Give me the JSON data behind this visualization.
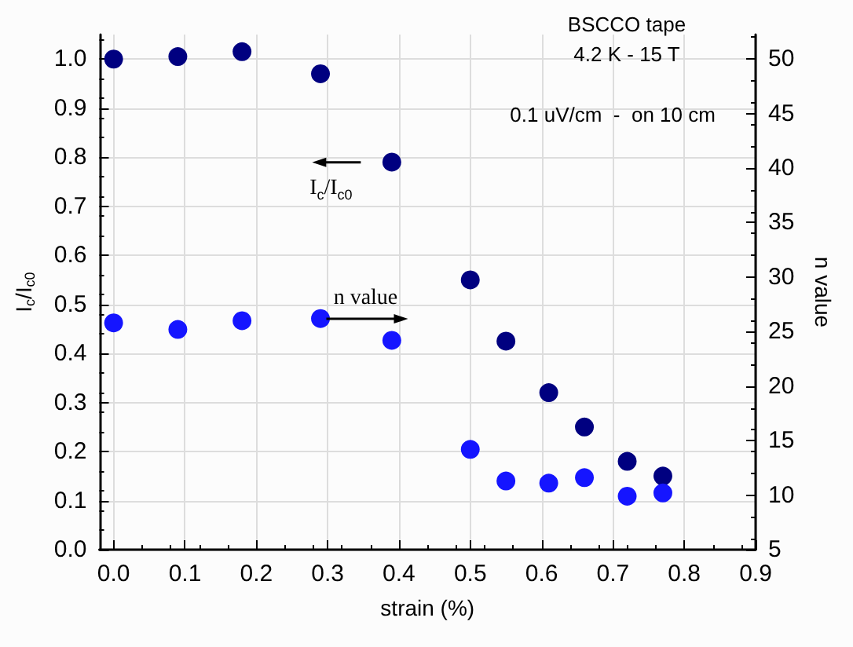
{
  "chart_data": {
    "type": "scatter",
    "title": "BSCCO tape",
    "subtitle": "4.2 K - 15 T",
    "xlabel": "strain (%)",
    "ylabel": "I$_{c}$/I$_{c0}$",
    "y2label": "n value",
    "annotations": [
      "0.1 uV/cm  -  on 10 cm",
      "I$_{c}$/I$_{c0}$",
      "n value"
    ],
    "x": [
      0,
      0.09,
      0.18,
      0.29,
      0.39,
      0.5,
      0.55,
      0.61,
      0.66,
      0.72,
      0.77
    ],
    "series": [
      {
        "color": "#000080",
        "values": [
          1.0,
          1.005,
          1.015,
          0.97,
          0.79,
          0.55,
          0.425,
          0.32,
          0.25,
          0.18,
          0.15
        ]
      },
      {
        "color": "#1515ff",
        "axis": "y2",
        "values": [
          25.8,
          25.2,
          26.0,
          26.2,
          24.2,
          14.2,
          11.3,
          11.1,
          11.6,
          9.9,
          10.2
        ]
      }
    ],
    "xlim": [
      -0.02,
      0.9
    ],
    "xticks": [
      {
        "value": 0,
        "label": "0.0"
      },
      0.1,
      0.2,
      0.3,
      0.4,
      0.5,
      0.6,
      0.7,
      0.8,
      0.9
    ],
    "ylim": [
      0,
      1.05
    ],
    "yticks": [
      {
        "value": 0,
        "label": "0.0"
      },
      0.1,
      0.2,
      0.3,
      0.4,
      0.5,
      0.6,
      0.7,
      0.8,
      0.9,
      {
        "value": 1,
        "label": "1.0"
      }
    ],
    "y2lim": [
      5,
      52.25
    ],
    "y2ticks": [
      5,
      10,
      15,
      20,
      25,
      30,
      35,
      40,
      45,
      50
    ],
    "grid": true,
    "marker": "circle"
  }
}
